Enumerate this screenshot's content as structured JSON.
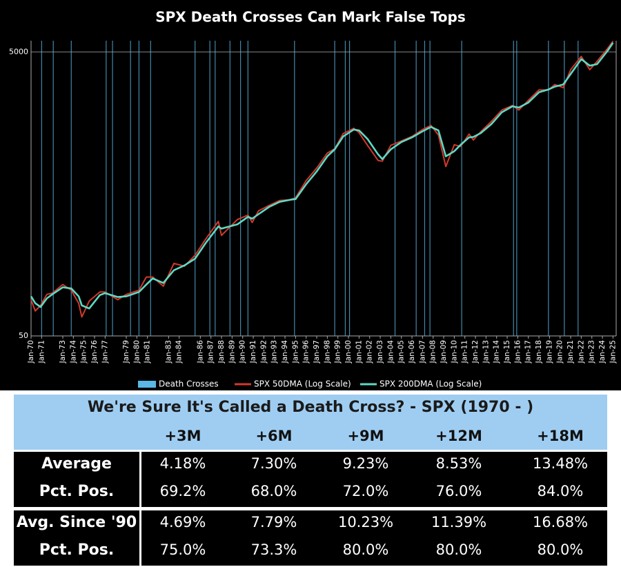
{
  "chart_data": {
    "type": "line",
    "title": "SPX Death Crosses Can Mark False Tops",
    "log_y": true,
    "grid": true,
    "xlim": [
      1970,
      2025.3
    ],
    "xticks": [
      {
        "value": 1970,
        "label": "Jan-70"
      },
      {
        "value": 1971,
        "label": "Jan-71"
      },
      {
        "value": 1973,
        "label": "Jan-73"
      },
      {
        "value": 1974,
        "label": "Jan-74"
      },
      {
        "value": 1975,
        "label": "Jan-75"
      },
      {
        "value": 1976,
        "label": "Jan-76"
      },
      {
        "value": 1977,
        "label": "Jan-77"
      },
      {
        "value": 1979,
        "label": "Jan-79"
      },
      {
        "value": 1980,
        "label": "Jan-80"
      },
      {
        "value": 1981,
        "label": "Jan-81"
      },
      {
        "value": 1983,
        "label": "Jan-83"
      },
      {
        "value": 1984,
        "label": "Jan-84"
      },
      {
        "value": 1986,
        "label": "Jan-86"
      },
      {
        "value": 1987,
        "label": "Jan-87"
      },
      {
        "value": 1988,
        "label": "Jan-88"
      },
      {
        "value": 1989,
        "label": "Jan-89"
      },
      {
        "value": 1990,
        "label": "Jan-90"
      },
      {
        "value": 1991,
        "label": "Jan-91"
      },
      {
        "value": 1992,
        "label": "Jan-92"
      },
      {
        "value": 1993,
        "label": "Jan-93"
      },
      {
        "value": 1994,
        "label": "Jan-94"
      },
      {
        "value": 1995,
        "label": "Jan-95"
      },
      {
        "value": 1996,
        "label": "Jan-96"
      },
      {
        "value": 1997,
        "label": "Jan-97"
      },
      {
        "value": 1998,
        "label": "Jan-98"
      },
      {
        "value": 1999,
        "label": "Jan-99"
      },
      {
        "value": 2000,
        "label": "Jan-00"
      },
      {
        "value": 2001,
        "label": "Jan-01"
      },
      {
        "value": 2002,
        "label": "Jan-02"
      },
      {
        "value": 2003,
        "label": "Jan-03"
      },
      {
        "value": 2004,
        "label": "Jan-04"
      },
      {
        "value": 2005,
        "label": "Jan-05"
      },
      {
        "value": 2006,
        "label": "Jan-06"
      },
      {
        "value": 2007,
        "label": "Jan-07"
      },
      {
        "value": 2008,
        "label": "Jan-08"
      },
      {
        "value": 2009,
        "label": "Jan-09"
      },
      {
        "value": 2010,
        "label": "Jan-10"
      },
      {
        "value": 2011,
        "label": "Jan-11"
      },
      {
        "value": 2012,
        "label": "Jan-12"
      },
      {
        "value": 2013,
        "label": "Jan-13"
      },
      {
        "value": 2014,
        "label": "Jan-14"
      },
      {
        "value": 2015,
        "label": "Jan-15"
      },
      {
        "value": 2016,
        "label": "Jan-16"
      },
      {
        "value": 2017,
        "label": "Jan-17"
      },
      {
        "value": 2018,
        "label": "Jan-18"
      },
      {
        "value": 2019,
        "label": "Jan-19"
      },
      {
        "value": 2020,
        "label": "Jan-20"
      },
      {
        "value": 2021,
        "label": "Jan-21"
      },
      {
        "value": 2022,
        "label": "Jan-22"
      },
      {
        "value": 2023,
        "label": "Jan-23"
      },
      {
        "value": 2024,
        "label": "Jan-24"
      },
      {
        "value": 2025,
        "label": "Jan-25"
      }
    ],
    "ylim": [
      50,
      6000
    ],
    "yticks": [
      50,
      5000
    ],
    "x": [
      1970,
      1970.4,
      1970.9,
      1971.5,
      1972,
      1973,
      1973.8,
      1974.5,
      1974.8,
      1975.5,
      1976.5,
      1977,
      1978.2,
      1979,
      1980.2,
      1980.9,
      1981.5,
      1982.5,
      1983.5,
      1984.5,
      1985.5,
      1986.5,
      1987.7,
      1988,
      1989.5,
      1990.5,
      1990.9,
      1991.5,
      1992.5,
      1993.5,
      1994.5,
      1995,
      1996,
      1997,
      1998,
      1998.7,
      1999.5,
      2000.5,
      2001,
      2001.8,
      2002.8,
      2003.2,
      2004,
      2005,
      2006,
      2007,
      2007.8,
      2008.5,
      2009.2,
      2010,
      2010.6,
      2011.4,
      2011.8,
      2012.5,
      2013.5,
      2014.5,
      2015.5,
      2016.1,
      2017,
      2018,
      2018.9,
      2019.5,
      2020.3,
      2021,
      2022,
      2022.8,
      2023.5,
      2024.5,
      2025
    ],
    "series": [
      {
        "name": "SPX 50DMA (Log Scale)",
        "color": "#d2392c",
        "values": [
          90,
          75,
          82,
          98,
          100,
          115,
          105,
          85,
          68,
          88,
          102,
          102,
          90,
          98,
          105,
          130,
          130,
          112,
          162,
          155,
          185,
          240,
          320,
          255,
          330,
          355,
          315,
          380,
          415,
          450,
          455,
          470,
          620,
          760,
          970,
          1040,
          1330,
          1450,
          1350,
          1100,
          860,
          850,
          1100,
          1180,
          1270,
          1420,
          1520,
          1300,
          780,
          1110,
          1080,
          1320,
          1200,
          1370,
          1620,
          1950,
          2100,
          1950,
          2280,
          2700,
          2700,
          2950,
          2800,
          3750,
          4650,
          3750,
          4300,
          5300,
          5950
        ]
      },
      {
        "name": "SPX 200DMA (Log Scale)",
        "color": "#5fd9c4",
        "values": [
          95,
          85,
          80,
          92,
          98,
          110,
          108,
          95,
          82,
          78,
          97,
          100,
          94,
          95,
          102,
          115,
          127,
          118,
          145,
          157,
          175,
          225,
          295,
          285,
          305,
          345,
          335,
          360,
          405,
          440,
          455,
          460,
          585,
          720,
          920,
          1030,
          1270,
          1420,
          1400,
          1220,
          950,
          880,
          1030,
          1160,
          1250,
          1380,
          1480,
          1400,
          920,
          1000,
          1110,
          1250,
          1260,
          1340,
          1550,
          1880,
          2070,
          2030,
          2200,
          2600,
          2720,
          2850,
          2950,
          3500,
          4450,
          4000,
          4100,
          5100,
          5800
        ]
      }
    ],
    "death_crosses": {
      "name": "Death Crosses",
      "color": "#5ab7e6",
      "x": [
        1971,
        1972.1,
        1973.8,
        1977.1,
        1977.7,
        1979.4,
        1980.2,
        1981.3,
        1985.5,
        1986.9,
        1987.4,
        1988.8,
        1989.8,
        1990.5,
        1994.9,
        1998.7,
        1999.7,
        2000.1,
        2004.4,
        2006.4,
        2007.2,
        2007.7,
        2010.7,
        2015.6,
        2015.9,
        2018.9,
        2020.4,
        2021.7
      ]
    }
  },
  "table": {
    "title": "We're Sure It's Called a Death Cross?  - SPX (1970 - )",
    "columns": [
      "+3M",
      "+6M",
      "+9M",
      "+12M",
      "+18M"
    ],
    "rows": [
      {
        "label": "Average",
        "cells": [
          "4.18%",
          "7.30%",
          "9.23%",
          "8.53%",
          "13.48%"
        ]
      },
      {
        "label": "Pct. Pos.",
        "cells": [
          "69.2%",
          "68.0%",
          "72.0%",
          "76.0%",
          "84.0%"
        ]
      },
      {
        "label": "Avg. Since '90",
        "cells": [
          "4.69%",
          "7.79%",
          "10.23%",
          "11.39%",
          "16.68%"
        ]
      },
      {
        "label": "Pct. Pos.",
        "cells": [
          "75.0%",
          "73.3%",
          "80.0%",
          "80.0%",
          "80.0%"
        ]
      }
    ]
  }
}
